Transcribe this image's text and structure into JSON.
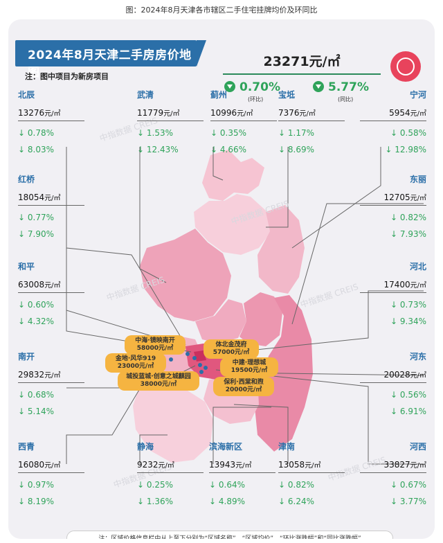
{
  "caption": "图：2024年8月天津各市辖区二手住宅挂牌均价及环同比",
  "banner_title": "2024年8月天津二手房房价地图",
  "note": "注：图中项目为新房项目",
  "city_avg": "23271元/㎡",
  "mom": "0.70%",
  "mom_label": "(环比)",
  "yoy": "5.77%",
  "yoy_label": "(同比)",
  "watermark": "中指数据 CREIS",
  "footer": "注：区域价格信息栏中从上至下分别为“区域名称”、“区域均价”、“环比涨跌幅”和“同比涨跌幅”",
  "colors": {
    "accent": "#2b6fa8",
    "down": "#2fa35a",
    "logo": "#e8435c",
    "project": "#f5b441"
  },
  "chart_data": {
    "type": "table",
    "unit": "元/㎡",
    "districts": [
      {
        "name": "北辰",
        "price": "13276",
        "mom": "↓ 0.78%",
        "yoy": "↓ 8.03%"
      },
      {
        "name": "武清",
        "price": "11779",
        "mom": "↓ 1.53%",
        "yoy": "↓ 12.43%"
      },
      {
        "name": "蓟州",
        "price": "10996",
        "mom": "↓ 0.35%",
        "yoy": "↓ 4.66%"
      },
      {
        "name": "宝坻",
        "price": "7376",
        "mom": "↓ 1.17%",
        "yoy": "↓ 8.69%"
      },
      {
        "name": "宁河",
        "price": "5954",
        "mom": "↓ 0.58%",
        "yoy": "↓ 12.98%"
      },
      {
        "name": "红桥",
        "price": "18054",
        "mom": "↓ 0.77%",
        "yoy": "↓ 7.90%"
      },
      {
        "name": "东丽",
        "price": "12705",
        "mom": "↓ 0.82%",
        "yoy": "↓ 7.93%"
      },
      {
        "name": "和平",
        "price": "63008",
        "mom": "↓ 0.60%",
        "yoy": "↓ 4.32%"
      },
      {
        "name": "河北",
        "price": "17400",
        "mom": "↓ 0.73%",
        "yoy": "↓ 9.34%"
      },
      {
        "name": "南开",
        "price": "29832",
        "mom": "↓ 0.68%",
        "yoy": "↓ 5.14%"
      },
      {
        "name": "河东",
        "price": "20028",
        "mom": "↓ 0.56%",
        "yoy": "↓ 6.91%"
      },
      {
        "name": "西青",
        "price": "16080",
        "mom": "↓ 0.97%",
        "yoy": "↓ 8.19%"
      },
      {
        "name": "静海",
        "price": "9232",
        "mom": "↓ 0.25%",
        "yoy": "↓ 1.36%"
      },
      {
        "name": "滨海新区",
        "price": "13943",
        "mom": "↓ 0.64%",
        "yoy": "↓ 4.89%"
      },
      {
        "name": "津南",
        "price": "13058",
        "mom": "↓ 0.82%",
        "yoy": "↓ 6.24%"
      },
      {
        "name": "河西",
        "price": "33827",
        "mom": "↓ 0.67%",
        "yoy": "↓ 3.77%"
      }
    ],
    "projects": [
      {
        "name": "中海·镜映南开",
        "price": "58000元/㎡"
      },
      {
        "name": "体北金茂府",
        "price": "57000元/㎡"
      },
      {
        "name": "金地·风华919",
        "price": "23000元/㎡"
      },
      {
        "name": "中建·理想城",
        "price": "19500元/㎡"
      },
      {
        "name": "城投蓝城·创意之城麒园",
        "price": "38000元/㎡"
      },
      {
        "name": "保利·西棠和煦",
        "price": "20000元/㎡"
      }
    ]
  }
}
